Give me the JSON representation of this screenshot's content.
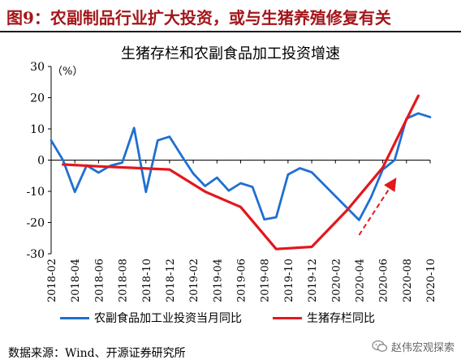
{
  "figure": {
    "title": "图9：农副制品行业扩大投资，或与生猪养殖修复有关",
    "colors": {
      "title": "#a4161a",
      "series_blue": "#1f6fd1",
      "series_red": "#e3171e",
      "arrow": "#e3171e"
    }
  },
  "chart_data": {
    "type": "line",
    "title": "生猪存栏和农副食品加工投资增速",
    "ylabel": "（%）",
    "xlabel": "",
    "ylim": [
      -30,
      30
    ],
    "yticks": [
      30,
      20,
      10,
      0,
      -10,
      -20,
      -30
    ],
    "x_tick_labels": [
      "2018-02",
      "2018-04",
      "2018-06",
      "2018-08",
      "2018-10",
      "2018-12",
      "2019-02",
      "2019-04",
      "2019-06",
      "2019-08",
      "2019-10",
      "2019-12",
      "2020-02",
      "2020-04",
      "2020-06",
      "2020-08",
      "2020-10"
    ],
    "grid": false,
    "legend_position": "bottom",
    "series": [
      {
        "name": "农副食品加工业投资当月同比",
        "color": "#1f6fd1",
        "points": [
          [
            "2018-02",
            6.3
          ],
          [
            "2018-03",
            0.0
          ],
          [
            "2018-04",
            -10.2
          ],
          [
            "2018-05",
            -1.7
          ],
          [
            "2018-06",
            -4.0
          ],
          [
            "2018-07",
            -1.8
          ],
          [
            "2018-08",
            -0.8
          ],
          [
            "2018-09",
            10.3
          ],
          [
            "2018-10",
            -10.2
          ],
          [
            "2018-11",
            6.3
          ],
          [
            "2018-12",
            7.5
          ],
          [
            "2019-01",
            1.5
          ],
          [
            "2019-02",
            -4.3
          ],
          [
            "2019-03",
            -8.3
          ],
          [
            "2019-04",
            -5.6
          ],
          [
            "2019-05",
            -9.8
          ],
          [
            "2019-06",
            -7.4
          ],
          [
            "2019-07",
            -8.6
          ],
          [
            "2019-08",
            -19.0
          ],
          [
            "2019-09",
            -18.3
          ],
          [
            "2019-10",
            -4.6
          ],
          [
            "2019-11",
            -2.6
          ],
          [
            "2019-12",
            -3.9
          ],
          [
            "2020-04",
            -19.2
          ],
          [
            "2020-05",
            -12.0
          ],
          [
            "2020-06",
            -3.0
          ],
          [
            "2020-07",
            0.0
          ],
          [
            "2020-08",
            13.3
          ],
          [
            "2020-09",
            15.0
          ],
          [
            "2020-10",
            13.8
          ]
        ]
      },
      {
        "name": "生猪存栏同比",
        "color": "#e3171e",
        "points": [
          [
            "2018-03",
            -1.4
          ],
          [
            "2018-06",
            -2.0
          ],
          [
            "2018-09",
            -2.5
          ],
          [
            "2018-12",
            -3.0
          ],
          [
            "2019-03",
            -10.1
          ],
          [
            "2019-06",
            -15.0
          ],
          [
            "2019-09",
            -28.5
          ],
          [
            "2019-12",
            -27.8
          ],
          [
            "2020-03",
            -16.0
          ],
          [
            "2020-06",
            -2.4
          ],
          [
            "2020-08",
            13.0
          ],
          [
            "2020-09",
            20.6
          ]
        ]
      }
    ],
    "annotations": [
      {
        "type": "arrow",
        "style": "dashed",
        "color": "#e3171e",
        "from": [
          "2020-04",
          -24.0
        ],
        "to": [
          "2020-07",
          -6.5
        ]
      }
    ]
  },
  "footer": {
    "source": "数据来源：Wind、开源证券研究所",
    "watermark": "赵伟宏观探索",
    "watermark_icon": "wechat-icon"
  }
}
